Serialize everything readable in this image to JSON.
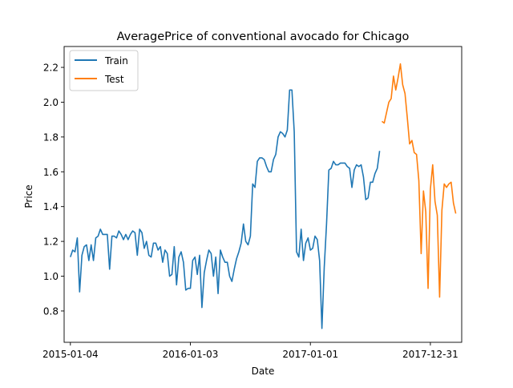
{
  "chart_data": {
    "type": "line",
    "title": "AveragePrice of conventional avocado for Chicago",
    "xlabel": "Date",
    "ylabel": "Price",
    "xlim": [
      "2014-12-16",
      "2018-04-05"
    ],
    "ylim": [
      0.62,
      2.32
    ],
    "x_ticks": [
      "2015-01-04",
      "2016-01-03",
      "2017-01-01",
      "2017-12-31"
    ],
    "y_ticks": [
      0.8,
      1.0,
      1.2,
      1.4,
      1.6,
      1.8,
      2.0,
      2.2
    ],
    "y_tick_labels": [
      "0.8",
      "1.0",
      "1.2",
      "1.4",
      "1.6",
      "1.8",
      "2.0",
      "2.2"
    ],
    "grid": false,
    "legend_position": "top-left",
    "series": [
      {
        "name": "Train",
        "color": "#1f77b4",
        "points": [
          [
            "2015-01-04",
            1.11
          ],
          [
            "2015-01-11",
            1.15
          ],
          [
            "2015-01-18",
            1.14
          ],
          [
            "2015-01-25",
            1.22
          ],
          [
            "2015-02-01",
            0.91
          ],
          [
            "2015-02-08",
            1.12
          ],
          [
            "2015-02-15",
            1.17
          ],
          [
            "2015-02-22",
            1.18
          ],
          [
            "2015-03-01",
            1.09
          ],
          [
            "2015-03-08",
            1.18
          ],
          [
            "2015-03-15",
            1.09
          ],
          [
            "2015-03-22",
            1.22
          ],
          [
            "2015-03-29",
            1.23
          ],
          [
            "2015-04-05",
            1.27
          ],
          [
            "2015-04-12",
            1.24
          ],
          [
            "2015-04-19",
            1.24
          ],
          [
            "2015-04-26",
            1.24
          ],
          [
            "2015-05-03",
            1.04
          ],
          [
            "2015-05-10",
            1.23
          ],
          [
            "2015-05-17",
            1.23
          ],
          [
            "2015-05-24",
            1.22
          ],
          [
            "2015-05-31",
            1.26
          ],
          [
            "2015-06-07",
            1.24
          ],
          [
            "2015-06-14",
            1.21
          ],
          [
            "2015-06-21",
            1.24
          ],
          [
            "2015-06-28",
            1.21
          ],
          [
            "2015-07-05",
            1.24
          ],
          [
            "2015-07-12",
            1.26
          ],
          [
            "2015-07-19",
            1.25
          ],
          [
            "2015-07-26",
            1.12
          ],
          [
            "2015-08-02",
            1.27
          ],
          [
            "2015-08-09",
            1.25
          ],
          [
            "2015-08-16",
            1.16
          ],
          [
            "2015-08-23",
            1.2
          ],
          [
            "2015-08-30",
            1.12
          ],
          [
            "2015-09-06",
            1.11
          ],
          [
            "2015-09-13",
            1.19
          ],
          [
            "2015-09-20",
            1.19
          ],
          [
            "2015-09-27",
            1.15
          ],
          [
            "2015-10-04",
            1.17
          ],
          [
            "2015-10-11",
            1.08
          ],
          [
            "2015-10-18",
            1.15
          ],
          [
            "2015-10-25",
            1.13
          ],
          [
            "2015-11-01",
            1.0
          ],
          [
            "2015-11-08",
            1.01
          ],
          [
            "2015-11-15",
            1.17
          ],
          [
            "2015-11-22",
            0.95
          ],
          [
            "2015-11-29",
            1.11
          ],
          [
            "2015-12-06",
            1.14
          ],
          [
            "2015-12-13",
            1.08
          ],
          [
            "2015-12-20",
            0.92
          ],
          [
            "2015-12-27",
            0.93
          ],
          [
            "2016-01-03",
            0.93
          ],
          [
            "2016-01-10",
            1.09
          ],
          [
            "2016-01-17",
            1.11
          ],
          [
            "2016-01-24",
            1.01
          ],
          [
            "2016-01-31",
            1.12
          ],
          [
            "2016-02-07",
            0.82
          ],
          [
            "2016-02-14",
            1.02
          ],
          [
            "2016-02-21",
            1.09
          ],
          [
            "2016-02-28",
            1.15
          ],
          [
            "2016-03-06",
            1.13
          ],
          [
            "2016-03-13",
            1.0
          ],
          [
            "2016-03-20",
            1.11
          ],
          [
            "2016-03-27",
            0.9
          ],
          [
            "2016-04-03",
            1.15
          ],
          [
            "2016-04-10",
            1.11
          ],
          [
            "2016-04-17",
            1.08
          ],
          [
            "2016-04-24",
            1.08
          ],
          [
            "2016-05-01",
            1.0
          ],
          [
            "2016-05-08",
            0.97
          ],
          [
            "2016-05-15",
            1.04
          ],
          [
            "2016-05-22",
            1.1
          ],
          [
            "2016-05-29",
            1.14
          ],
          [
            "2016-06-05",
            1.19
          ],
          [
            "2016-06-12",
            1.3
          ],
          [
            "2016-06-19",
            1.2
          ],
          [
            "2016-06-26",
            1.18
          ],
          [
            "2016-07-03",
            1.23
          ],
          [
            "2016-07-10",
            1.53
          ],
          [
            "2016-07-17",
            1.51
          ],
          [
            "2016-07-24",
            1.66
          ],
          [
            "2016-07-31",
            1.68
          ],
          [
            "2016-08-07",
            1.68
          ],
          [
            "2016-08-14",
            1.67
          ],
          [
            "2016-08-21",
            1.63
          ],
          [
            "2016-08-28",
            1.6
          ],
          [
            "2016-09-04",
            1.6
          ],
          [
            "2016-09-11",
            1.67
          ],
          [
            "2016-09-18",
            1.7
          ],
          [
            "2016-09-25",
            1.8
          ],
          [
            "2016-10-02",
            1.83
          ],
          [
            "2016-10-09",
            1.82
          ],
          [
            "2016-10-16",
            1.8
          ],
          [
            "2016-10-23",
            1.84
          ],
          [
            "2016-10-30",
            2.07
          ],
          [
            "2016-11-06",
            2.07
          ],
          [
            "2016-11-13",
            1.83
          ],
          [
            "2016-11-20",
            1.14
          ],
          [
            "2016-11-27",
            1.11
          ],
          [
            "2016-12-04",
            1.27
          ],
          [
            "2016-12-11",
            1.09
          ],
          [
            "2016-12-18",
            1.19
          ],
          [
            "2016-12-25",
            1.22
          ],
          [
            "2017-01-01",
            1.15
          ],
          [
            "2017-01-08",
            1.16
          ],
          [
            "2017-01-15",
            1.23
          ],
          [
            "2017-01-22",
            1.21
          ],
          [
            "2017-01-29",
            1.09
          ],
          [
            "2017-02-05",
            0.7
          ],
          [
            "2017-02-12",
            1.05
          ],
          [
            "2017-02-19",
            1.3
          ],
          [
            "2017-02-26",
            1.61
          ],
          [
            "2017-03-05",
            1.62
          ],
          [
            "2017-03-12",
            1.66
          ],
          [
            "2017-03-19",
            1.64
          ],
          [
            "2017-03-26",
            1.64
          ],
          [
            "2017-04-02",
            1.65
          ],
          [
            "2017-04-09",
            1.65
          ],
          [
            "2017-04-16",
            1.65
          ],
          [
            "2017-04-23",
            1.63
          ],
          [
            "2017-04-30",
            1.62
          ],
          [
            "2017-05-07",
            1.51
          ],
          [
            "2017-05-14",
            1.61
          ],
          [
            "2017-05-21",
            1.64
          ],
          [
            "2017-05-28",
            1.63
          ],
          [
            "2017-06-04",
            1.64
          ],
          [
            "2017-06-11",
            1.57
          ],
          [
            "2017-06-18",
            1.44
          ],
          [
            "2017-06-25",
            1.45
          ],
          [
            "2017-07-02",
            1.54
          ],
          [
            "2017-07-09",
            1.54
          ],
          [
            "2017-07-16",
            1.59
          ],
          [
            "2017-07-23",
            1.62
          ],
          [
            "2017-07-30",
            1.72
          ]
        ]
      },
      {
        "name": "Test",
        "color": "#ff7f0e",
        "points": [
          [
            "2017-08-06",
            1.89
          ],
          [
            "2017-08-13",
            1.88
          ],
          [
            "2017-08-20",
            1.94
          ],
          [
            "2017-08-27",
            2.0
          ],
          [
            "2017-09-03",
            2.02
          ],
          [
            "2017-09-10",
            2.15
          ],
          [
            "2017-09-17",
            2.07
          ],
          [
            "2017-09-24",
            2.14
          ],
          [
            "2017-10-01",
            2.22
          ],
          [
            "2017-10-08",
            2.1
          ],
          [
            "2017-10-15",
            2.05
          ],
          [
            "2017-10-22",
            1.91
          ],
          [
            "2017-10-29",
            1.76
          ],
          [
            "2017-11-05",
            1.78
          ],
          [
            "2017-11-12",
            1.71
          ],
          [
            "2017-11-19",
            1.7
          ],
          [
            "2017-11-26",
            1.55
          ],
          [
            "2017-12-03",
            1.13
          ],
          [
            "2017-12-10",
            1.49
          ],
          [
            "2017-12-17",
            1.37
          ],
          [
            "2017-12-24",
            0.93
          ],
          [
            "2017-12-31",
            1.5
          ],
          [
            "2018-01-07",
            1.64
          ],
          [
            "2018-01-14",
            1.43
          ],
          [
            "2018-01-21",
            1.35
          ],
          [
            "2018-01-28",
            0.88
          ],
          [
            "2018-02-04",
            1.38
          ],
          [
            "2018-02-11",
            1.53
          ],
          [
            "2018-02-18",
            1.51
          ],
          [
            "2018-02-25",
            1.53
          ],
          [
            "2018-03-04",
            1.54
          ],
          [
            "2018-03-11",
            1.42
          ],
          [
            "2018-03-18",
            1.36
          ]
        ]
      }
    ]
  }
}
